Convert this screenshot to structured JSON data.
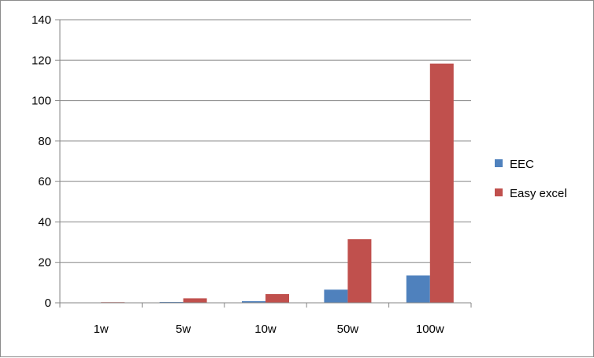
{
  "chart_data": {
    "type": "bar",
    "categories": [
      "1w",
      "5w",
      "10w",
      "50w",
      "100w"
    ],
    "series": [
      {
        "name": "EEC",
        "values": [
          0.1,
          0.4,
          0.8,
          6.5,
          13.5
        ],
        "color": "#4F81BD"
      },
      {
        "name": "Easy excel",
        "values": [
          0.3,
          2.2,
          4.3,
          31.5,
          118.3
        ],
        "color": "#C0504D"
      }
    ],
    "title": "",
    "xlabel": "",
    "ylabel": "",
    "ylim": [
      0,
      140
    ],
    "yticks": [
      "0",
      "20",
      "40",
      "60",
      "80",
      "100",
      "120",
      "140"
    ],
    "grid": true,
    "legend_position": "right"
  }
}
